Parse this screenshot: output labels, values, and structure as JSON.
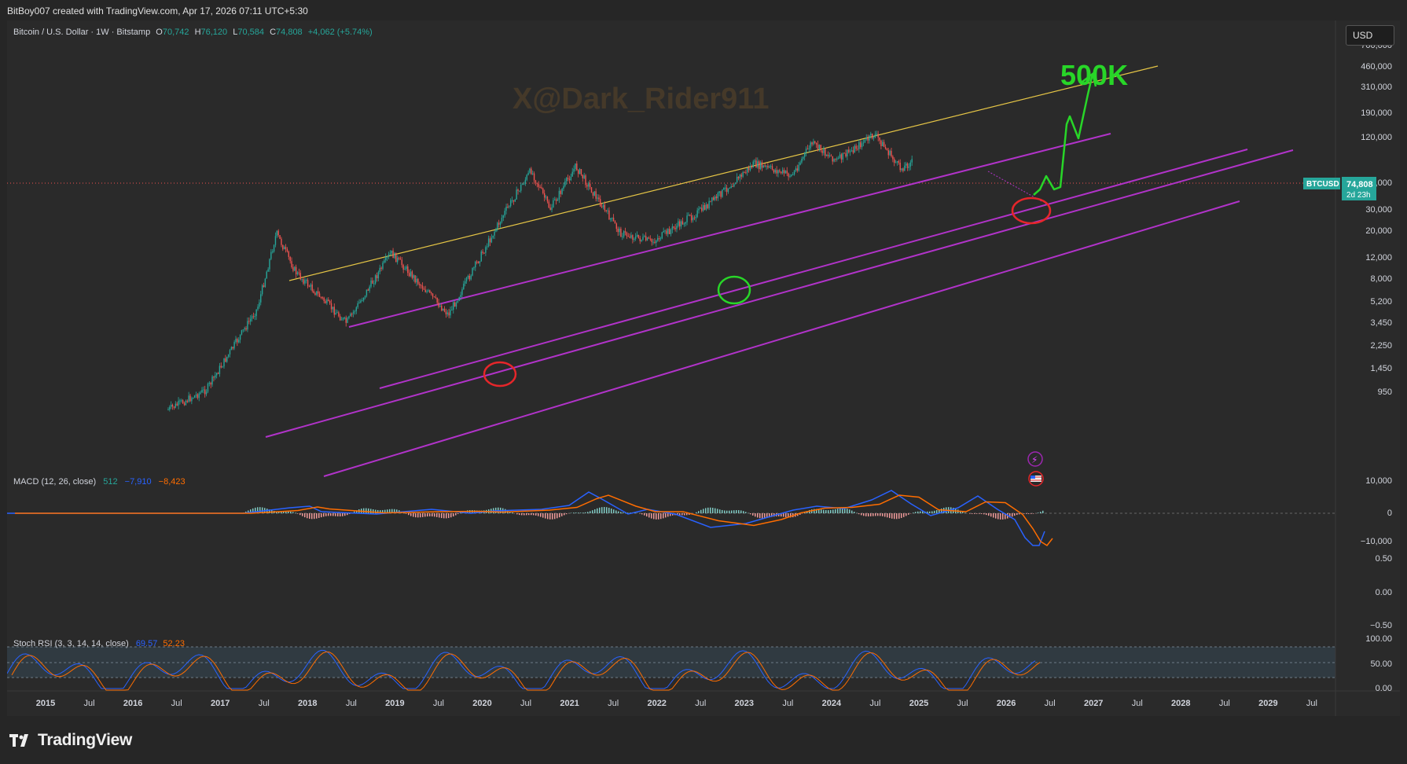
{
  "header": {
    "credit": "BitBoy007 created with TradingView.com, Apr 17, 2026 07:11 UTC+5:30"
  },
  "symbol": {
    "name": "Bitcoin / U.S. Dollar · 1W · Bitstamp",
    "o_label": "O",
    "o": "70,742",
    "h_label": "H",
    "h": "76,120",
    "l_label": "L",
    "l": "70,584",
    "c_label": "C",
    "c": "74,808",
    "change": "+4,062 (+5.74%)"
  },
  "currency_button": "USD",
  "watermark": "X@Dark_Rider911",
  "annotation_target": "500K",
  "price_tag": {
    "symbol": "BTCUSD",
    "price": "74,808",
    "countdown": "2d 23h"
  },
  "macd": {
    "label": "MACD (12, 26, close)",
    "v1": "512",
    "v2": "−7,910",
    "v3": "−8,423"
  },
  "stoch": {
    "label": "Stoch RSI (3, 3, 14, 14, close)",
    "k": "69.57",
    "d": "52.23"
  },
  "footer": {
    "brand": "TradingView"
  },
  "colors": {
    "bg": "#2a2a2a",
    "up": "#26a69a",
    "down": "#ef5350",
    "channel": "#b133c9",
    "top_line": "#e5c546",
    "green_annotation": "#28d628",
    "red_annotation": "#e6262a",
    "macd_line": "#2962ff",
    "signal_line": "#ff6d00",
    "stoch_band": "#334049"
  },
  "chart_data": [
    {
      "type": "candlestick",
      "title": "Bitcoin / U.S. Dollar · 1W · Bitstamp",
      "scale": "log",
      "y_ticks": [
        "700,000",
        "460,000",
        "310,000",
        "190,000",
        "120,000",
        "50,000",
        "30,000",
        "20,000",
        "12,000",
        "8,000",
        "5,200",
        "3,450",
        "2,250",
        "1,450",
        "950"
      ],
      "x_ticks": [
        "2015",
        "Jul",
        "2016",
        "Jul",
        "2017",
        "Jul",
        "2018",
        "Jul",
        "2019",
        "Jul",
        "2020",
        "Jul",
        "2021",
        "Jul",
        "2022",
        "Jul",
        "2023",
        "Jul",
        "2024",
        "Jul",
        "2025",
        "Jul",
        "2026",
        "Jul",
        "2027",
        "Jul",
        "2028",
        "Jul",
        "2029",
        "Jul"
      ],
      "key_points": [
        {
          "date": "2016-07",
          "price": 650
        },
        {
          "date": "2017-01",
          "price": 950
        },
        {
          "date": "2017-09",
          "price": 4500
        },
        {
          "date": "2017-12",
          "price": 19000
        },
        {
          "date": "2018-03",
          "price": 9000
        },
        {
          "date": "2018-11",
          "price": 3400
        },
        {
          "date": "2019-06",
          "price": 13000
        },
        {
          "date": "2020-03",
          "price": 4000
        },
        {
          "date": "2020-12",
          "price": 29000
        },
        {
          "date": "2021-04",
          "price": 63000
        },
        {
          "date": "2021-07",
          "price": 30000
        },
        {
          "date": "2021-11",
          "price": 68000
        },
        {
          "date": "2022-06",
          "price": 19000
        },
        {
          "date": "2022-11",
          "price": 16000
        },
        {
          "date": "2023-07",
          "price": 30000
        },
        {
          "date": "2024-03",
          "price": 71000
        },
        {
          "date": "2024-09",
          "price": 57000
        },
        {
          "date": "2024-12",
          "price": 106000
        },
        {
          "date": "2025-04",
          "price": 76000
        },
        {
          "date": "2025-10",
          "price": 125000
        },
        {
          "date": "2026-02",
          "price": 65000
        },
        {
          "date": "2026-04",
          "price": 74808
        }
      ]
    },
    {
      "type": "line",
      "title": "MACD (12, 26, close)",
      "y_ticks": [
        "10,000",
        "0",
        "−10,000"
      ],
      "series": [
        {
          "name": "MACD"
        },
        {
          "name": "Signal"
        }
      ]
    },
    {
      "type": "line",
      "title": "Stoch RSI (3, 3, 14, 14, close)",
      "y_ticks": [
        "100.00",
        "50.00",
        "0.00"
      ],
      "series": [
        {
          "name": "K"
        },
        {
          "name": "D"
        }
      ]
    },
    {
      "type": "line",
      "y_ticks": [
        "0.50",
        "0.00",
        "−0.50"
      ]
    }
  ]
}
